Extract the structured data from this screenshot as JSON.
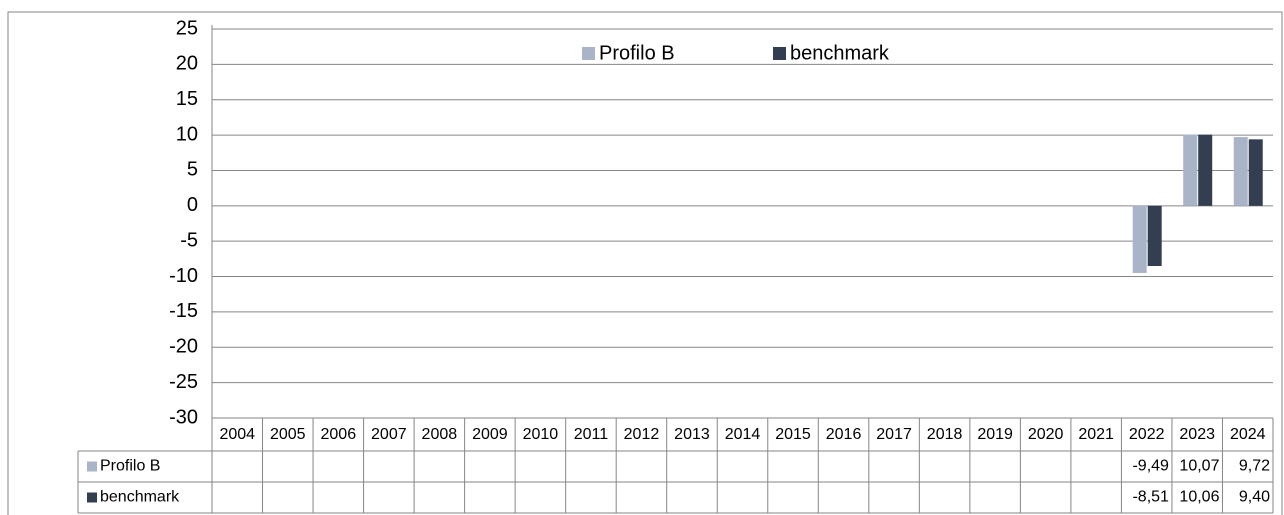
{
  "chart_data": {
    "type": "bar",
    "categories": [
      "2004",
      "2005",
      "2006",
      "2007",
      "2008",
      "2009",
      "2010",
      "2011",
      "2012",
      "2013",
      "2014",
      "2015",
      "2016",
      "2017",
      "2018",
      "2019",
      "2020",
      "2021",
      "2022",
      "2023",
      "2024"
    ],
    "series": [
      {
        "name": "Profilo B",
        "color": "#aab4c8",
        "values": [
          null,
          null,
          null,
          null,
          null,
          null,
          null,
          null,
          null,
          null,
          null,
          null,
          null,
          null,
          null,
          null,
          null,
          null,
          -9.49,
          10.07,
          9.72
        ],
        "value_labels": [
          null,
          null,
          null,
          null,
          null,
          null,
          null,
          null,
          null,
          null,
          null,
          null,
          null,
          null,
          null,
          null,
          null,
          null,
          "-9,49",
          "10,07",
          "9,72"
        ]
      },
      {
        "name": "benchmark",
        "color": "#333f50",
        "values": [
          null,
          null,
          null,
          null,
          null,
          null,
          null,
          null,
          null,
          null,
          null,
          null,
          null,
          null,
          null,
          null,
          null,
          null,
          -8.51,
          10.06,
          9.4
        ],
        "value_labels": [
          null,
          null,
          null,
          null,
          null,
          null,
          null,
          null,
          null,
          null,
          null,
          null,
          null,
          null,
          null,
          null,
          null,
          null,
          "-8,51",
          "10,06",
          "9,40"
        ]
      }
    ],
    "ylim": [
      -30,
      25
    ],
    "yticks": [
      25,
      20,
      15,
      10,
      5,
      0,
      -5,
      -10,
      -15,
      -20,
      -25,
      -30
    ],
    "grid": true,
    "legend": "top"
  }
}
